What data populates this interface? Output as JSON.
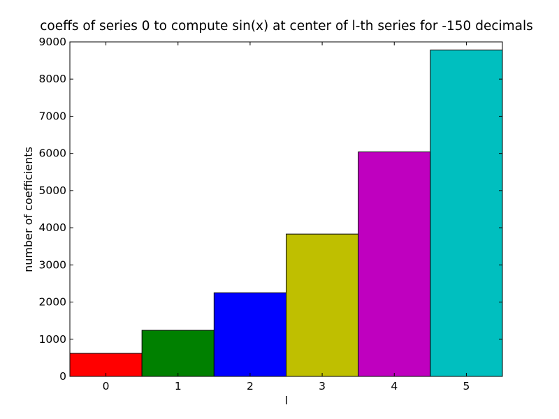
{
  "chart_data": {
    "type": "bar",
    "title": "coeffs of series 0 to compute sin(x) at center of l-th series for -150 decimals",
    "xlabel": "l",
    "ylabel": "number of coefficients",
    "categories": [
      "0",
      "1",
      "2",
      "3",
      "4",
      "5"
    ],
    "values": [
      620,
      1240,
      2250,
      3830,
      6040,
      8780
    ],
    "colors": [
      "#ff0000",
      "#008000",
      "#0000ff",
      "#bfbf00",
      "#bf00bf",
      "#00bfbf"
    ],
    "ylim": [
      0,
      9000
    ],
    "yticks": [
      "0",
      "1000",
      "2000",
      "3000",
      "4000",
      "5000",
      "6000",
      "7000",
      "8000",
      "9000"
    ],
    "grid": false,
    "legend": "none"
  }
}
